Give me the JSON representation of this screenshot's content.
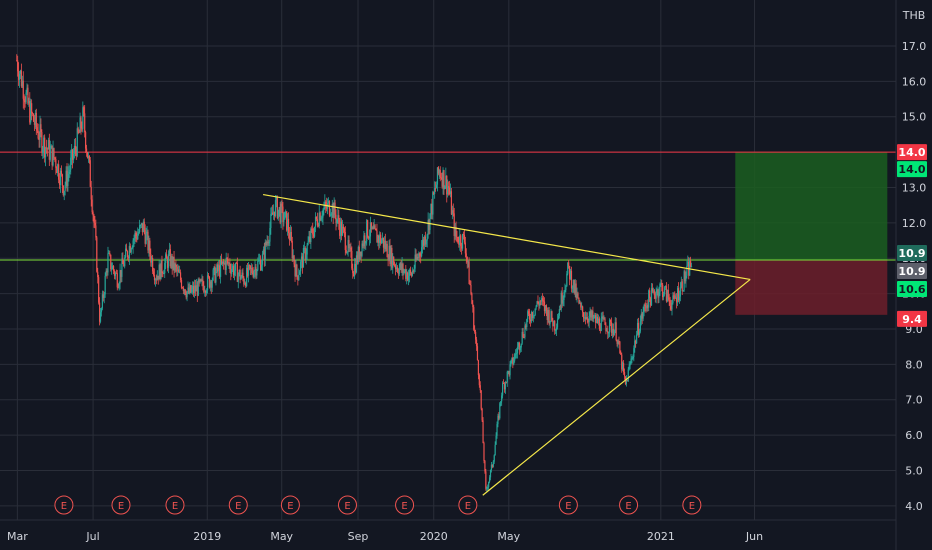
{
  "currency": "THB",
  "colors": {
    "background": "#131722",
    "grid": "#2a2e39",
    "up": "#26a69a",
    "down": "#ef5350",
    "trendline": "#f5e84a",
    "resistance": "#f23645",
    "support": "#7fe03a",
    "profit_zone": "#1b5e20",
    "loss_zone": "#6d1f2a"
  },
  "earnings_marker_label": "E",
  "chart_data": {
    "type": "candlestick",
    "ylim": [
      3.6,
      18.3
    ],
    "y_ticks": [
      4.0,
      5.0,
      6.0,
      7.0,
      8.0,
      9.0,
      10.0,
      11.0,
      12.0,
      13.0,
      14.0,
      15.0,
      16.0,
      17.0
    ],
    "x_ticks": [
      {
        "label": "Mar",
        "date": "2018-03-01"
      },
      {
        "label": "Jul",
        "date": "2018-07-01"
      },
      {
        "label": "2019",
        "date": "2019-01-01"
      },
      {
        "label": "May",
        "date": "2019-05-01"
      },
      {
        "label": "Sep",
        "date": "2019-09-01"
      },
      {
        "label": "2020",
        "date": "2020-01-01"
      },
      {
        "label": "May",
        "date": "2020-05-01"
      },
      {
        "label": "2021",
        "date": "2021-01-01"
      },
      {
        "label": "Jun",
        "date": "2021-06-01"
      }
    ],
    "x_range": [
      "2018-02-01",
      "2022-01-15"
    ],
    "price_path": [
      [
        "2018-02-28",
        16.6
      ],
      [
        "2018-03-20",
        15.2
      ],
      [
        "2018-04-10",
        14.3
      ],
      [
        "2018-05-01",
        13.8
      ],
      [
        "2018-05-15",
        13.0
      ],
      [
        "2018-06-01",
        14.0
      ],
      [
        "2018-06-15",
        15.0
      ],
      [
        "2018-06-25",
        13.5
      ],
      [
        "2018-07-05",
        11.5
      ],
      [
        "2018-07-12",
        9.2
      ],
      [
        "2018-07-25",
        11.0
      ],
      [
        "2018-08-10",
        10.4
      ],
      [
        "2018-09-01",
        11.5
      ],
      [
        "2018-09-20",
        11.9
      ],
      [
        "2018-10-10",
        10.5
      ],
      [
        "2018-11-01",
        11.0
      ],
      [
        "2018-12-01",
        10.0
      ],
      [
        "2019-01-01",
        10.3
      ],
      [
        "2019-02-01",
        10.9
      ],
      [
        "2019-03-01",
        10.4
      ],
      [
        "2019-04-01",
        11.0
      ],
      [
        "2019-04-20",
        12.5
      ],
      [
        "2019-05-10",
        12.0
      ],
      [
        "2019-05-25",
        10.5
      ],
      [
        "2019-06-15",
        11.5
      ],
      [
        "2019-07-01",
        12.3
      ],
      [
        "2019-07-20",
        12.5
      ],
      [
        "2019-08-10",
        11.6
      ],
      [
        "2019-08-25",
        10.7
      ],
      [
        "2019-09-15",
        11.8
      ],
      [
        "2019-10-10",
        11.5
      ],
      [
        "2019-11-01",
        10.8
      ],
      [
        "2019-11-25",
        10.5
      ],
      [
        "2019-12-20",
        11.7
      ],
      [
        "2020-01-10",
        13.5
      ],
      [
        "2020-01-25",
        13.0
      ],
      [
        "2020-02-05",
        11.6
      ],
      [
        "2020-02-20",
        11.5
      ],
      [
        "2020-03-01",
        10.0
      ],
      [
        "2020-03-15",
        7.5
      ],
      [
        "2020-03-25",
        4.4
      ],
      [
        "2020-04-05",
        5.2
      ],
      [
        "2020-04-20",
        7.3
      ],
      [
        "2020-05-10",
        8.2
      ],
      [
        "2020-06-01",
        9.3
      ],
      [
        "2020-06-20",
        9.8
      ],
      [
        "2020-07-15",
        9.1
      ],
      [
        "2020-08-05",
        10.7
      ],
      [
        "2020-08-25",
        9.5
      ],
      [
        "2020-09-20",
        9.2
      ],
      [
        "2020-10-20",
        9.0
      ],
      [
        "2020-11-05",
        7.4
      ],
      [
        "2020-11-25",
        9.0
      ],
      [
        "2020-12-10",
        9.8
      ],
      [
        "2021-01-01",
        10.2
      ],
      [
        "2021-01-20",
        9.7
      ],
      [
        "2021-02-05",
        10.3
      ],
      [
        "2021-02-20",
        10.9
      ]
    ],
    "trendlines": [
      {
        "name": "upper",
        "from": [
          "2019-04-01",
          12.8
        ],
        "to": [
          "2021-05-25",
          10.4
        ]
      },
      {
        "name": "lower",
        "from": [
          "2020-03-20",
          4.3
        ],
        "to": [
          "2021-05-25",
          10.4
        ]
      }
    ],
    "horizontal_lines": [
      {
        "name": "resistance",
        "price": 14.0
      },
      {
        "name": "support",
        "price": 10.95
      }
    ],
    "position": {
      "x_start": "2021-05-01",
      "x_end": "2022-01-01",
      "target": 14.0,
      "entry": 10.95,
      "stop": 9.4
    },
    "price_labels": [
      "14.0",
      "14.0",
      "10.9",
      "10.9",
      "10.6",
      "9.4"
    ],
    "earnings_dates": [
      "2018-05-15",
      "2018-08-15",
      "2018-11-10",
      "2019-02-20",
      "2019-05-15",
      "2019-08-15",
      "2019-11-15",
      "2020-02-25",
      "2020-08-05",
      "2020-11-10",
      "2021-02-20"
    ]
  }
}
